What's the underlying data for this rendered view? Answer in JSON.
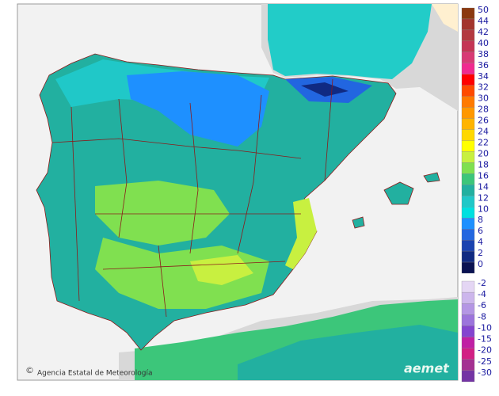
{
  "legend": {
    "items": [
      {
        "label": "50",
        "color": "#8b3a10"
      },
      {
        "label": "44",
        "color": "#a3362e"
      },
      {
        "label": "42",
        "color": "#b3383f"
      },
      {
        "label": "40",
        "color": "#c43555"
      },
      {
        "label": "38",
        "color": "#d83a75"
      },
      {
        "label": "36",
        "color": "#f02a90"
      },
      {
        "label": "34",
        "color": "#ff0000"
      },
      {
        "label": "32",
        "color": "#ff4a00"
      },
      {
        "label": "30",
        "color": "#ff7a00"
      },
      {
        "label": "28",
        "color": "#ff9800"
      },
      {
        "label": "26",
        "color": "#ffb400"
      },
      {
        "label": "24",
        "color": "#ffd800"
      },
      {
        "label": "22",
        "color": "#ffff00"
      },
      {
        "label": "20",
        "color": "#c8f040"
      },
      {
        "label": "18",
        "color": "#80e050"
      },
      {
        "label": "16",
        "color": "#3cc67a"
      },
      {
        "label": "14",
        "color": "#22b0a0"
      },
      {
        "label": "12",
        "color": "#20c8c8"
      },
      {
        "label": "10",
        "color": "#00e0e0"
      },
      {
        "label": "8",
        "color": "#1e90ff"
      },
      {
        "label": "6",
        "color": "#2266e0"
      },
      {
        "label": "4",
        "color": "#1a42b0"
      },
      {
        "label": "2",
        "color": "#102a82"
      },
      {
        "label": "0",
        "color": "#0a1252"
      }
    ],
    "negative_items": [
      {
        "label": "-2",
        "color": "#e4d6f4"
      },
      {
        "label": "-4",
        "color": "#ccb6ec"
      },
      {
        "label": "-6",
        "color": "#b496e4"
      },
      {
        "label": "-8",
        "color": "#9c74dc"
      },
      {
        "label": "-10",
        "color": "#8444d0"
      },
      {
        "label": "-15",
        "color": "#c020a4"
      },
      {
        "label": "-20",
        "color": "#d22084"
      },
      {
        "label": "-25",
        "color": "#a43092"
      },
      {
        "label": "-30",
        "color": "#7434a4"
      }
    ]
  },
  "credit": "Agencia Estatal de Meteorología",
  "logo": "aemet"
}
